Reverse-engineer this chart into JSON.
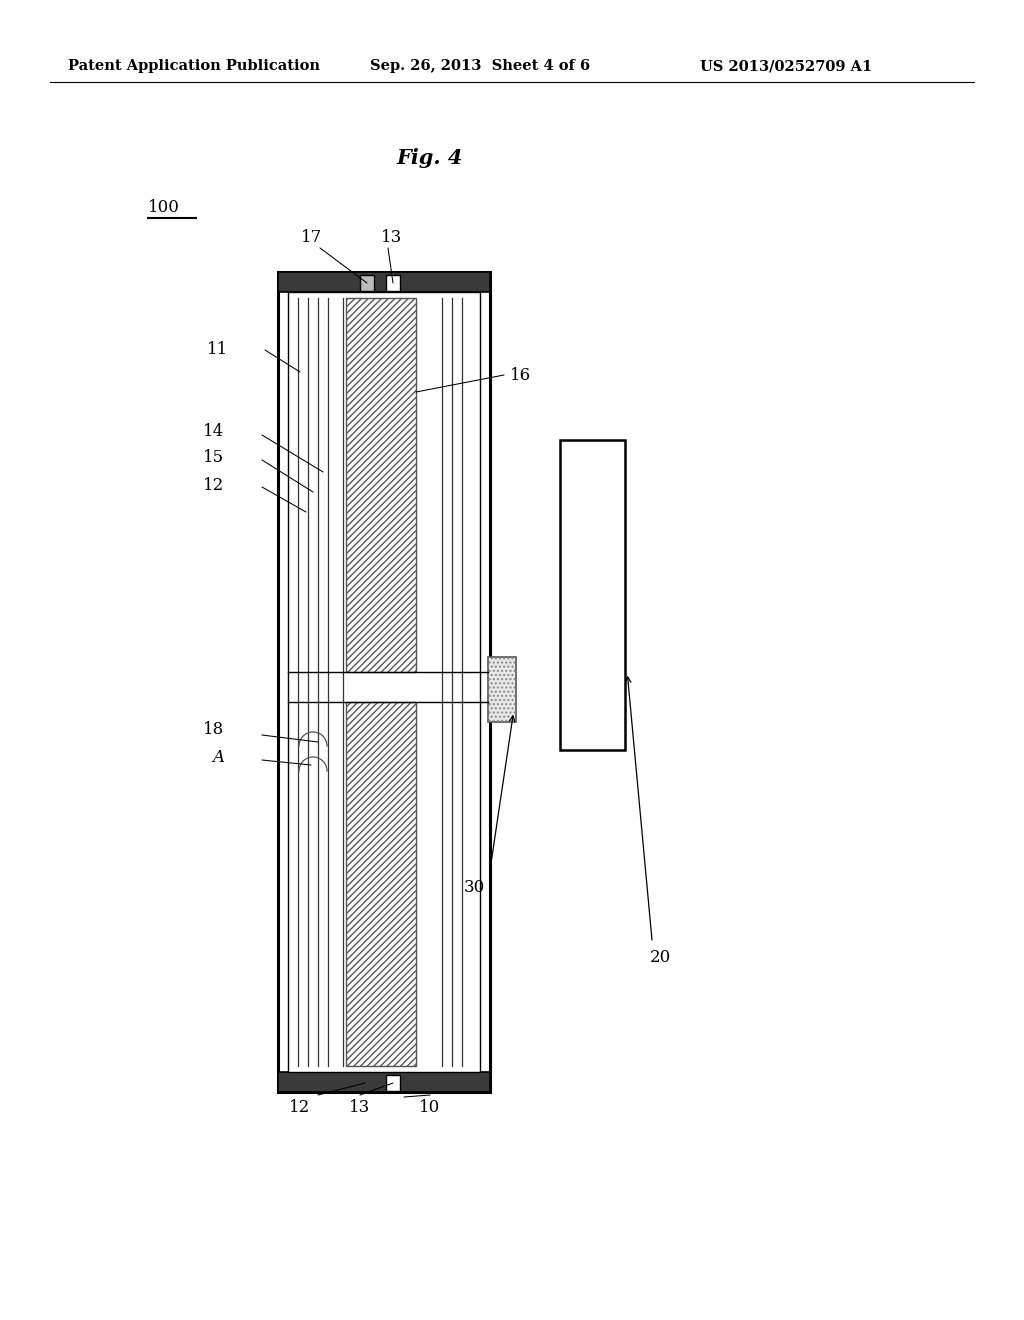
{
  "bg_color": "#ffffff",
  "header_left": "Patent Application Publication",
  "header_center": "Sep. 26, 2013  Sheet 4 of 6",
  "header_right": "US 2013/0252709 A1",
  "fig_label": "Fig. 4",
  "label_100": "100",
  "label_17": "17",
  "label_13_top": "13",
  "label_11": "11",
  "label_16": "16",
  "label_14": "14",
  "label_15": "15",
  "label_12_mid": "12",
  "label_18": "18",
  "label_A": "A",
  "label_30": "30",
  "label_20": "20",
  "label_12_bot": "12",
  "label_13_bot": "13",
  "label_10": "10"
}
